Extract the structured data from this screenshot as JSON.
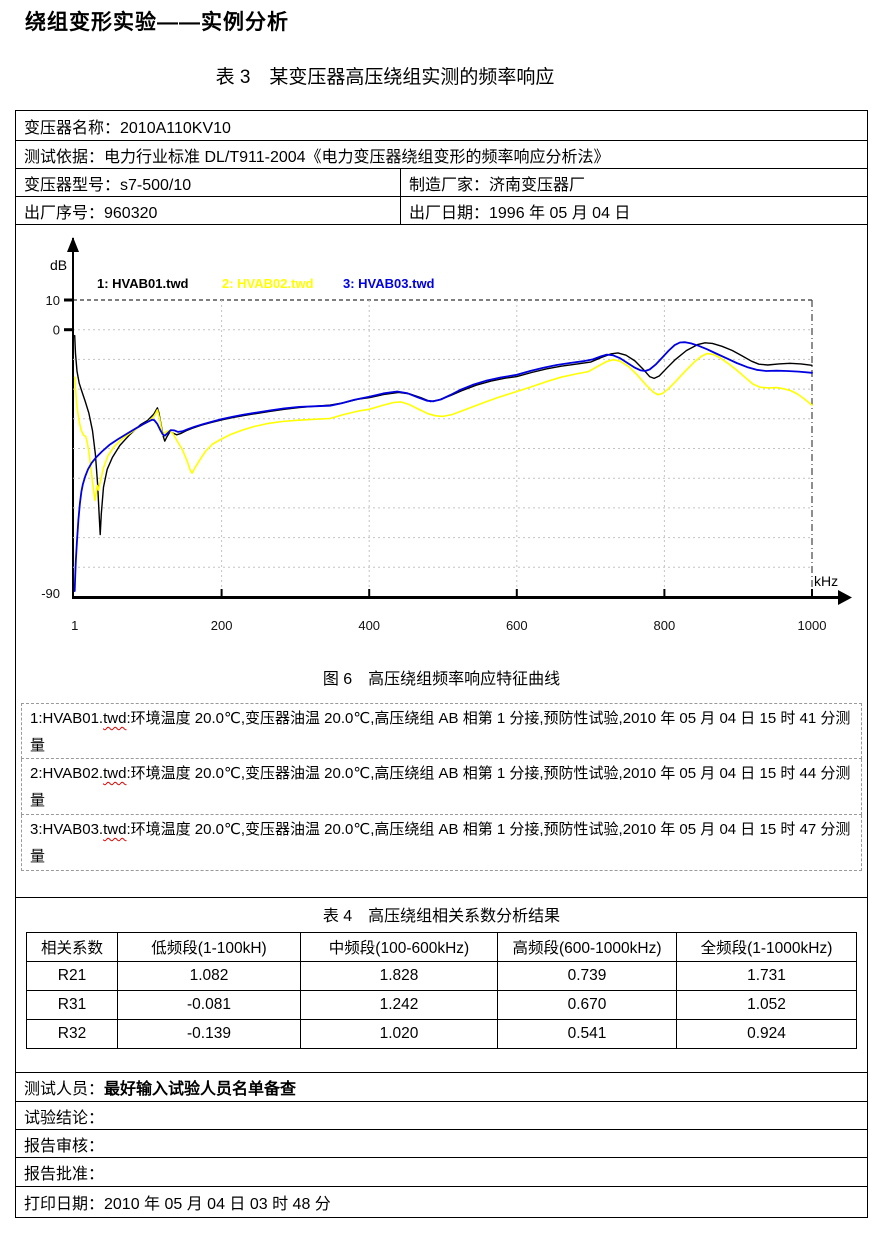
{
  "header": {
    "title": "绕组变形实验——实例分析",
    "table3_caption": "表 3　某变压器高压绕组实测的频率响应"
  },
  "info": {
    "name": "变压器名称：2010A110KV10",
    "basis": "测试依据：电力行业标准 DL/T911-2004《电力变压器绕组变形的频率响应分析法》",
    "model": "变压器型号：s7-500/10",
    "maker": "制造厂家：济南变压器厂",
    "serial": "出厂序号：960320",
    "date": "出厂日期：1996 年 05 月 04 日"
  },
  "figure": {
    "caption": "图 6　高压绕组频率响应特征曲线"
  },
  "chart_data": {
    "type": "line",
    "title": "高压绕组频率响应特征曲线",
    "xlabel": "kHz",
    "ylabel": "dB",
    "xlim": [
      1,
      1000
    ],
    "ylim": [
      -90,
      10
    ],
    "x_ticks": [
      1,
      200,
      400,
      600,
      800,
      1000
    ],
    "y_grid": [
      10,
      0,
      -10,
      -20,
      -30,
      -40,
      -50,
      -60,
      -70,
      -80
    ],
    "y_tick_labels": [
      10,
      0,
      -90
    ],
    "grid": true,
    "legend_position": "top",
    "series": [
      {
        "name": "HVAB01.twd",
        "label": "1: HVAB01.twd",
        "color": "#000000",
        "points": [
          [
            1,
            -2
          ],
          [
            2,
            -8
          ],
          [
            4,
            -14
          ],
          [
            7,
            -18
          ],
          [
            11,
            -21
          ],
          [
            15,
            -24
          ],
          [
            20,
            -28
          ],
          [
            25,
            -34
          ],
          [
            29,
            -42
          ],
          [
            32,
            -52
          ],
          [
            34,
            -62
          ],
          [
            35.5,
            -69
          ],
          [
            37,
            -62
          ],
          [
            40,
            -53
          ],
          [
            45,
            -47
          ],
          [
            52,
            -43
          ],
          [
            62,
            -39
          ],
          [
            75,
            -35.5
          ],
          [
            90,
            -32
          ],
          [
            100,
            -30.5
          ],
          [
            108,
            -28.5
          ],
          [
            111,
            -27.2
          ],
          [
            113,
            -26.3
          ],
          [
            115,
            -28
          ],
          [
            118,
            -32
          ],
          [
            121,
            -36
          ],
          [
            123,
            -37.5
          ],
          [
            126,
            -36
          ],
          [
            130,
            -34.4
          ],
          [
            134,
            -34.8
          ],
          [
            139,
            -35.4
          ],
          [
            145,
            -34.9
          ],
          [
            152,
            -34
          ],
          [
            160,
            -33.2
          ],
          [
            172,
            -32.2
          ],
          [
            185,
            -31.3
          ],
          [
            200,
            -30.4
          ],
          [
            215,
            -29.6
          ],
          [
            230,
            -28.9
          ],
          [
            247,
            -28.2
          ],
          [
            265,
            -27.5
          ],
          [
            285,
            -26.8
          ],
          [
            305,
            -26.2
          ],
          [
            325,
            -25.8
          ],
          [
            347,
            -25.4
          ],
          [
            365,
            -24.6
          ],
          [
            385,
            -23.4
          ],
          [
            400,
            -22.9
          ],
          [
            420,
            -21.8
          ],
          [
            440,
            -21.1
          ],
          [
            455,
            -21.6
          ],
          [
            470,
            -22.9
          ],
          [
            483,
            -24.2
          ],
          [
            495,
            -23.6
          ],
          [
            510,
            -22.2
          ],
          [
            525,
            -20.6
          ],
          [
            545,
            -18.7
          ],
          [
            565,
            -17.3
          ],
          [
            585,
            -16.3
          ],
          [
            600,
            -15.8
          ],
          [
            620,
            -14.4
          ],
          [
            640,
            -13.2
          ],
          [
            660,
            -12.3
          ],
          [
            680,
            -11.6
          ],
          [
            700,
            -10.9
          ],
          [
            715,
            -9.3
          ],
          [
            728,
            -8.1
          ],
          [
            737,
            -7.8
          ],
          [
            748,
            -8.6
          ],
          [
            760,
            -10.5
          ],
          [
            772,
            -13.5
          ],
          [
            780,
            -15.8
          ],
          [
            786,
            -16.4
          ],
          [
            793,
            -15.6
          ],
          [
            803,
            -13
          ],
          [
            815,
            -10
          ],
          [
            830,
            -7
          ],
          [
            845,
            -5
          ],
          [
            855,
            -4.4
          ],
          [
            865,
            -4.6
          ],
          [
            878,
            -5.6
          ],
          [
            892,
            -7
          ],
          [
            905,
            -8.8
          ],
          [
            918,
            -10.6
          ],
          [
            928,
            -11.6
          ],
          [
            940,
            -11.9
          ],
          [
            955,
            -11.5
          ],
          [
            970,
            -11.3
          ],
          [
            985,
            -11.5
          ],
          [
            1000,
            -12
          ]
        ]
      },
      {
        "name": "HVAB02.twd",
        "label": "2: HVAB02.twd",
        "color": "#ffff00",
        "points": [
          [
            1,
            -16
          ],
          [
            2,
            -20
          ],
          [
            4,
            -26
          ],
          [
            7,
            -31
          ],
          [
            10,
            -34
          ],
          [
            13,
            -35.5
          ],
          [
            16,
            -36
          ],
          [
            18,
            -38
          ],
          [
            20,
            -41
          ],
          [
            23,
            -47
          ],
          [
            26,
            -53
          ],
          [
            28.5,
            -57.5
          ],
          [
            30,
            -55
          ],
          [
            31.5,
            -52.5
          ],
          [
            33,
            -54
          ],
          [
            35,
            -52
          ],
          [
            40,
            -46.5
          ],
          [
            46,
            -42.5
          ],
          [
            54,
            -39.5
          ],
          [
            64,
            -37
          ],
          [
            76,
            -34.8
          ],
          [
            88,
            -32.8
          ],
          [
            100,
            -31
          ],
          [
            108,
            -29.3
          ],
          [
            111,
            -28
          ],
          [
            113,
            -27
          ],
          [
            116,
            -30
          ],
          [
            120,
            -35.5
          ],
          [
            124,
            -34.5
          ],
          [
            128,
            -34
          ],
          [
            134,
            -35
          ],
          [
            140,
            -37.5
          ],
          [
            147,
            -40.5
          ],
          [
            153,
            -44
          ],
          [
            157,
            -47
          ],
          [
            160,
            -48.3
          ],
          [
            164,
            -46.5
          ],
          [
            170,
            -44
          ],
          [
            178,
            -41
          ],
          [
            188,
            -38.5
          ],
          [
            200,
            -36.8
          ],
          [
            213,
            -35.2
          ],
          [
            228,
            -33.8
          ],
          [
            244,
            -32.6
          ],
          [
            262,
            -31.6
          ],
          [
            282,
            -30.9
          ],
          [
            302,
            -30.5
          ],
          [
            322,
            -30.2
          ],
          [
            347,
            -29.9
          ],
          [
            365,
            -28.6
          ],
          [
            385,
            -27.4
          ],
          [
            400,
            -26.8
          ],
          [
            418,
            -25.5
          ],
          [
            433,
            -24.5
          ],
          [
            443,
            -24.3
          ],
          [
            455,
            -25.3
          ],
          [
            468,
            -26.9
          ],
          [
            480,
            -28.3
          ],
          [
            490,
            -29
          ],
          [
            500,
            -29.2
          ],
          [
            512,
            -28.6
          ],
          [
            525,
            -27.4
          ],
          [
            540,
            -26
          ],
          [
            558,
            -24.3
          ],
          [
            575,
            -22.8
          ],
          [
            600,
            -20.8
          ],
          [
            620,
            -19.2
          ],
          [
            640,
            -17.5
          ],
          [
            660,
            -16
          ],
          [
            680,
            -14.9
          ],
          [
            697,
            -14.1
          ],
          [
            710,
            -12.3
          ],
          [
            722,
            -10.7
          ],
          [
            731,
            -10.1
          ],
          [
            740,
            -10.6
          ],
          [
            752,
            -12.5
          ],
          [
            763,
            -15.2
          ],
          [
            775,
            -18.6
          ],
          [
            785,
            -21
          ],
          [
            791,
            -21.9
          ],
          [
            797,
            -21.5
          ],
          [
            805,
            -20
          ],
          [
            815,
            -17.5
          ],
          [
            828,
            -14
          ],
          [
            840,
            -11
          ],
          [
            850,
            -9
          ],
          [
            858,
            -8
          ],
          [
            866,
            -8.3
          ],
          [
            875,
            -9.4
          ],
          [
            886,
            -11.3
          ],
          [
            898,
            -13.6
          ],
          [
            910,
            -16.2
          ],
          [
            920,
            -18.3
          ],
          [
            930,
            -19.4
          ],
          [
            942,
            -19.6
          ],
          [
            952,
            -19.5
          ],
          [
            962,
            -19.9
          ],
          [
            972,
            -20.6
          ],
          [
            980,
            -21.6
          ],
          [
            988,
            -23
          ],
          [
            1000,
            -25.4
          ]
        ]
      },
      {
        "name": "HVAB03.twd",
        "label": "3: HVAB03.twd",
        "color": "#0000e0",
        "points": [
          [
            1,
            -88
          ],
          [
            1.5,
            -84
          ],
          [
            2.5,
            -78
          ],
          [
            4,
            -71
          ],
          [
            6,
            -64
          ],
          [
            8,
            -58.5
          ],
          [
            10,
            -54.5
          ],
          [
            12,
            -52
          ],
          [
            15,
            -49.5
          ],
          [
            19,
            -47
          ],
          [
            24,
            -44.8
          ],
          [
            30,
            -43
          ],
          [
            38,
            -41
          ],
          [
            48,
            -38.8
          ],
          [
            60,
            -36.8
          ],
          [
            72,
            -35
          ],
          [
            84,
            -33.2
          ],
          [
            94,
            -31.8
          ],
          [
            101,
            -30.9
          ],
          [
            106,
            -30.3
          ],
          [
            109,
            -30.5
          ],
          [
            113,
            -31.8
          ],
          [
            117,
            -33.8
          ],
          [
            120,
            -35.2
          ],
          [
            123,
            -35.7
          ],
          [
            127,
            -34.8
          ],
          [
            131,
            -33.8
          ],
          [
            136,
            -33.9
          ],
          [
            141,
            -34.4
          ],
          [
            147,
            -34.2
          ],
          [
            154,
            -33.5
          ],
          [
            163,
            -32.7
          ],
          [
            175,
            -31.8
          ],
          [
            188,
            -30.9
          ],
          [
            200,
            -30.1
          ],
          [
            215,
            -29.3
          ],
          [
            230,
            -28.6
          ],
          [
            247,
            -27.9
          ],
          [
            265,
            -27.2
          ],
          [
            285,
            -26.5
          ],
          [
            305,
            -26
          ],
          [
            325,
            -25.8
          ],
          [
            347,
            -25.6
          ],
          [
            362,
            -24.8
          ],
          [
            380,
            -23.6
          ],
          [
            400,
            -22.6
          ],
          [
            420,
            -21.4
          ],
          [
            438,
            -20.8
          ],
          [
            452,
            -21.4
          ],
          [
            466,
            -22.8
          ],
          [
            478,
            -23.9
          ],
          [
            487,
            -24.1
          ],
          [
            497,
            -23.5
          ],
          [
            510,
            -22
          ],
          [
            523,
            -20.3
          ],
          [
            540,
            -18.6
          ],
          [
            558,
            -17.2
          ],
          [
            578,
            -16.1
          ],
          [
            600,
            -15.2
          ],
          [
            618,
            -13.9
          ],
          [
            636,
            -12.8
          ],
          [
            654,
            -11.9
          ],
          [
            672,
            -11.2
          ],
          [
            690,
            -10.6
          ],
          [
            703,
            -10
          ],
          [
            714,
            -9
          ],
          [
            722,
            -8.4
          ],
          [
            730,
            -8.6
          ],
          [
            740,
            -9.6
          ],
          [
            750,
            -11.2
          ],
          [
            760,
            -12.8
          ],
          [
            768,
            -13.7
          ],
          [
            774,
            -13.9
          ],
          [
            780,
            -13.4
          ],
          [
            788,
            -11.8
          ],
          [
            797,
            -9.4
          ],
          [
            806,
            -7
          ],
          [
            814,
            -5.2
          ],
          [
            821,
            -4.3
          ],
          [
            828,
            -4.2
          ],
          [
            836,
            -4.6
          ],
          [
            846,
            -5.4
          ],
          [
            858,
            -6.6
          ],
          [
            870,
            -8
          ],
          [
            884,
            -9.6
          ],
          [
            898,
            -11.2
          ],
          [
            912,
            -12.6
          ],
          [
            925,
            -13.5
          ],
          [
            938,
            -13.9
          ],
          [
            952,
            -13.8
          ],
          [
            966,
            -13.9
          ],
          [
            982,
            -14.1
          ],
          [
            1000,
            -14.5
          ]
        ]
      }
    ]
  },
  "descriptions": [
    {
      "prefix": "1:HVAB01.",
      "misspell": "twd",
      "rest": ":环境温度 20.0℃,变压器油温 20.0℃,高压绕组 AB 相第 1 分接,预防性试验,2010 年 05 月 04 日 15 时 41 分测量"
    },
    {
      "prefix": "2:HVAB02.",
      "misspell": "twd",
      "rest": ":环境温度 20.0℃,变压器油温 20.0℃,高压绕组 AB 相第 1 分接,预防性试验,2010 年 05 月 04 日 15 时 44 分测量"
    },
    {
      "prefix": "3:HVAB03.",
      "misspell": "twd",
      "rest": ":环境温度 20.0℃,变压器油温 20.0℃,高压绕组 AB 相第 1 分接,预防性试验,2010 年 05 月 04 日 15 时 47 分测量"
    }
  ],
  "table4": {
    "caption": "表 4　高压绕组相关系数分析结果",
    "headers": [
      "相关系数",
      "低频段(1-100kH)",
      "中频段(100-600kHz)",
      "高频段(600-1000kHz)",
      "全频段(1-1000kHz)"
    ],
    "rows": [
      [
        "R21",
        "1.082",
        "1.828",
        "0.739",
        "1.731"
      ],
      [
        "R31",
        "-0.081",
        "1.242",
        "0.670",
        "1.052"
      ],
      [
        "R32",
        "-0.139",
        "1.020",
        "0.541",
        "0.924"
      ]
    ]
  },
  "footer": {
    "tester_label": "测试人员：",
    "tester_value": "最好输入试验人员名单备查",
    "conclusion": "试验结论：",
    "review": "报告审核：",
    "approve": "报告批准：",
    "print_date": "打印日期：2010 年 05 月 04 日 03 时 48 分"
  }
}
